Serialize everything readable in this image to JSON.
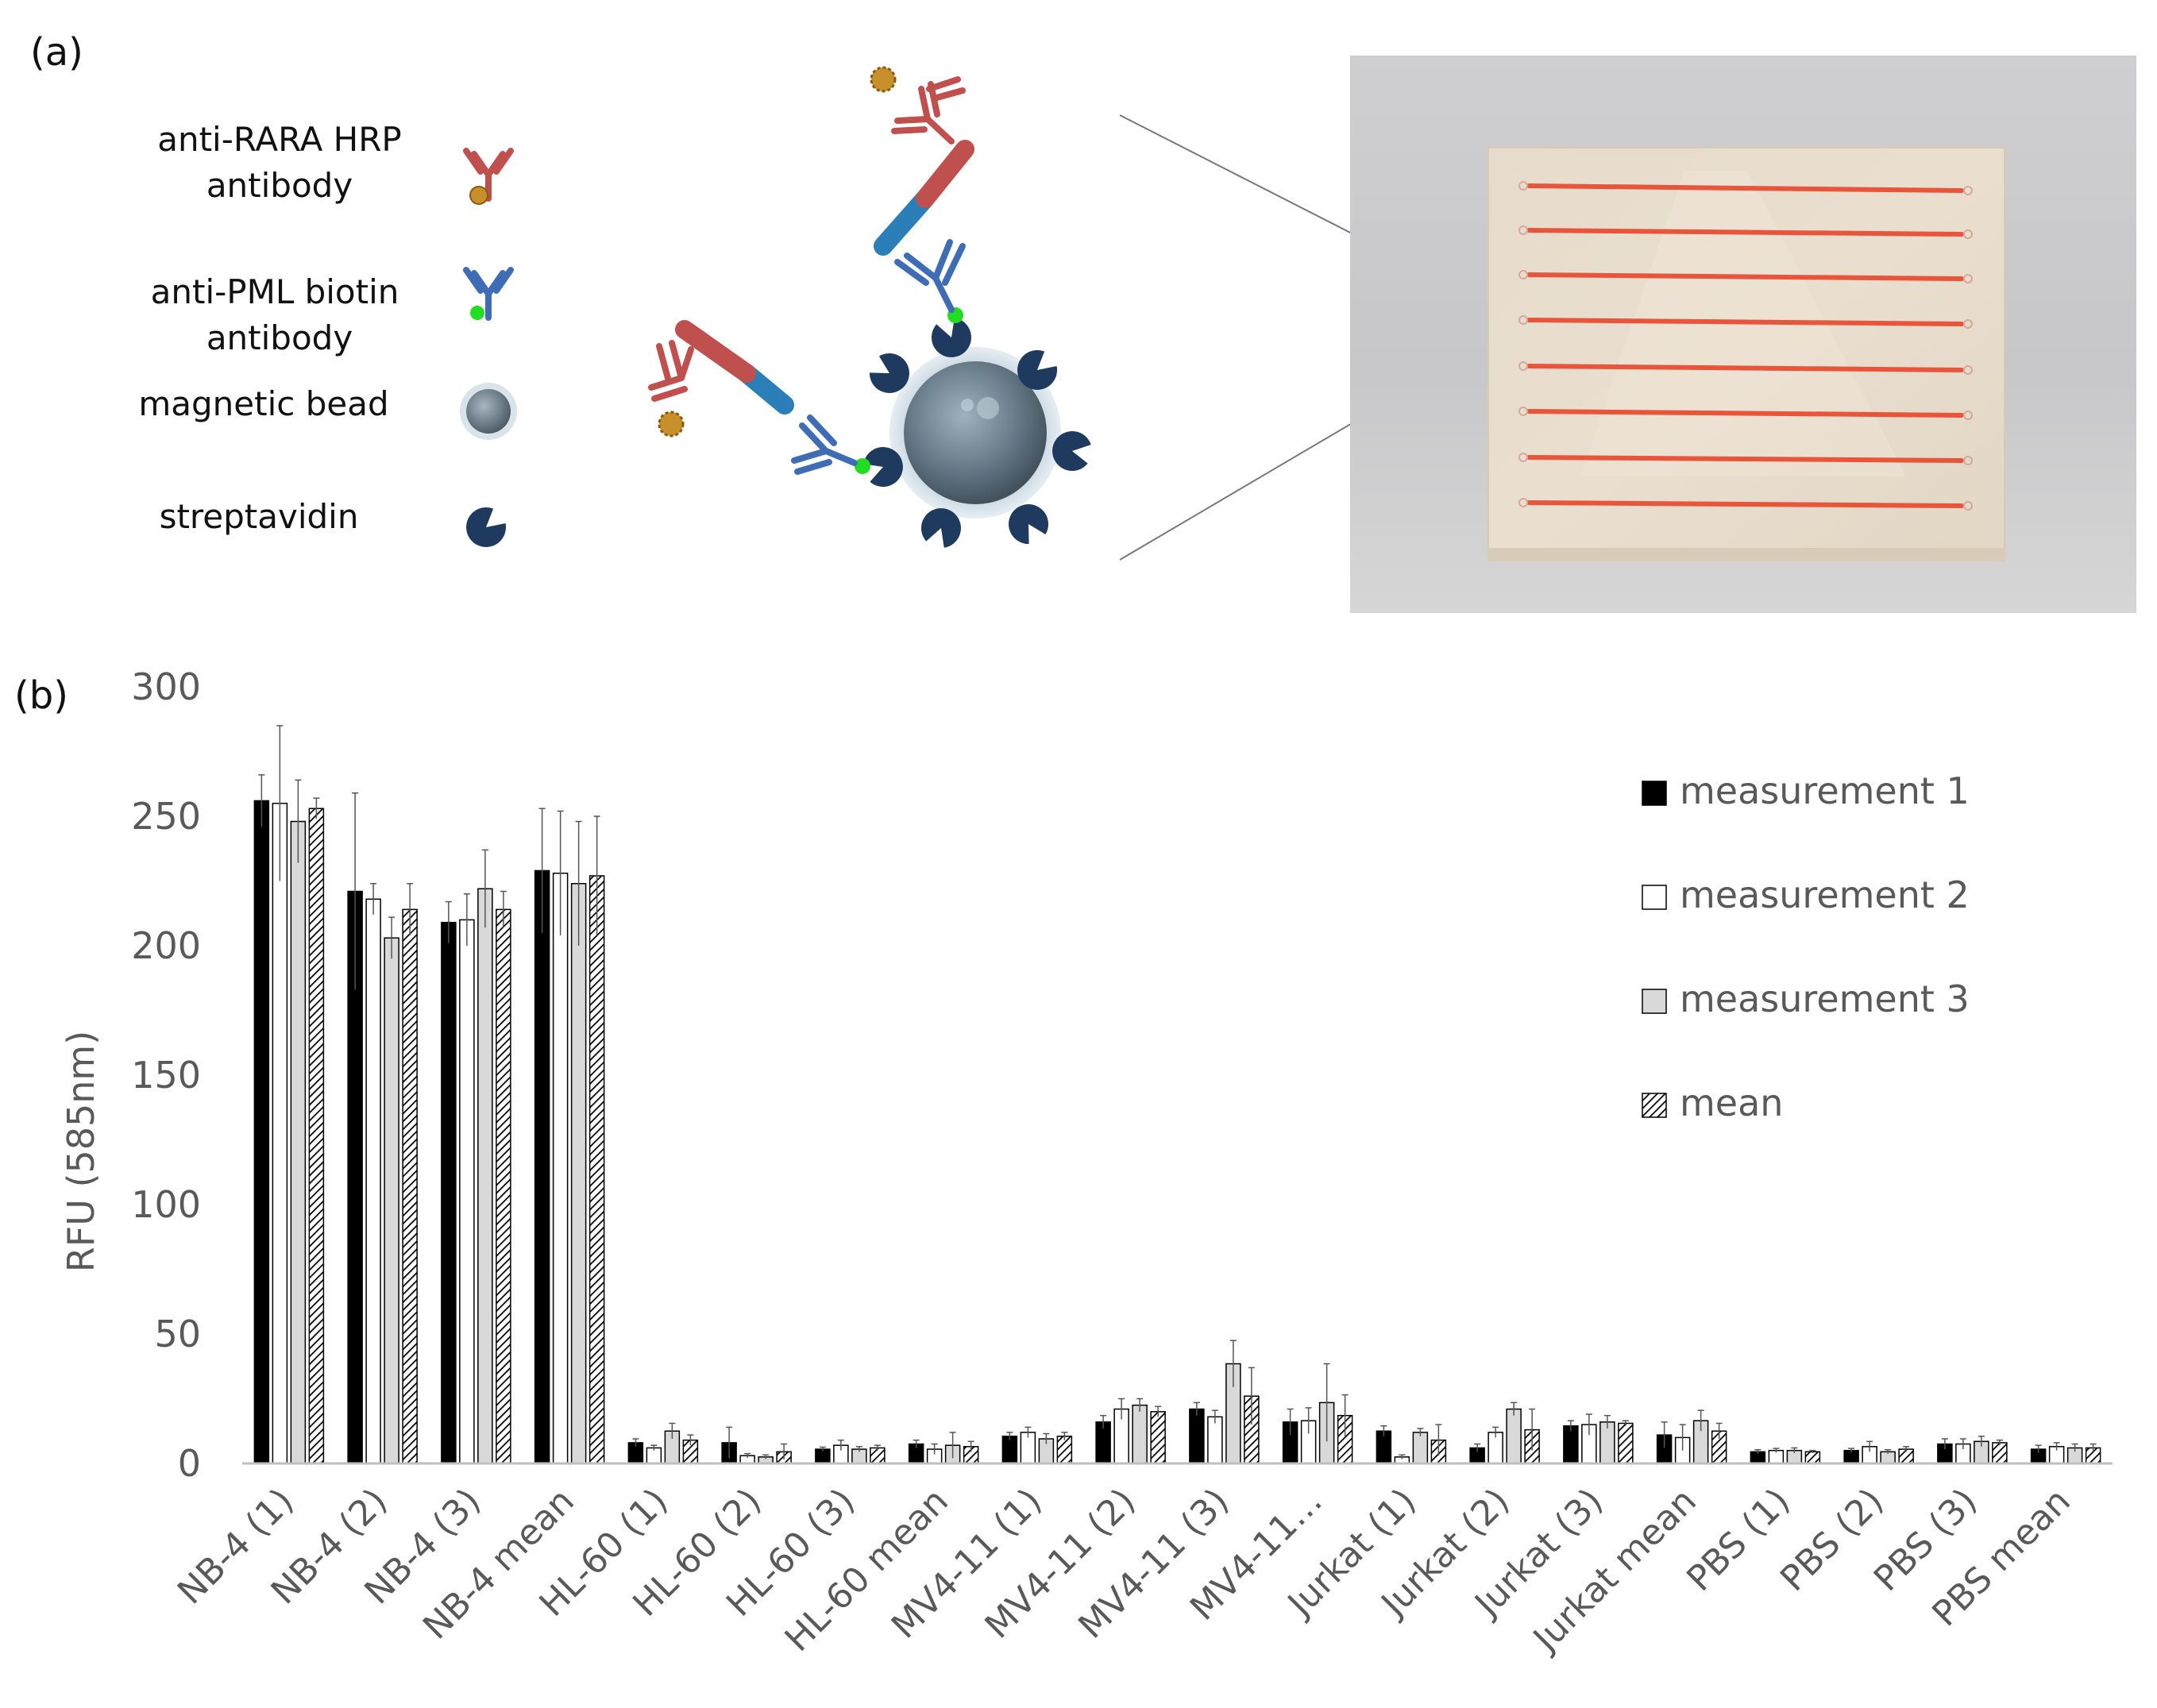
{
  "panel_a": {
    "label": "(a)",
    "legend": [
      {
        "line1": "anti-RARA HRP",
        "line2": "antibody",
        "icon": "red-antibody-hrp-icon"
      },
      {
        "line1": "anti-PML biotin",
        "line2": "antibody",
        "icon": "blue-antibody-biotin-icon"
      },
      {
        "line1": "magnetic bead",
        "line2": "",
        "icon": "magnetic-bead-icon"
      },
      {
        "line1": "streptavidin",
        "line2": "",
        "icon": "streptavidin-icon"
      }
    ],
    "colors": {
      "red": "#c0504d",
      "blue": "#3e6db5",
      "navy": "#1f3a5f",
      "hrp": "#c8902a",
      "biotin": "#22dd22",
      "chip_line": "#e8553a"
    }
  },
  "panel_b": {
    "label": "(b)"
  },
  "chart_data": {
    "type": "bar",
    "ylabel": "RFU (585nm)",
    "xlabel": "",
    "ylim": [
      0,
      300
    ],
    "yticks": [
      0,
      50,
      100,
      150,
      200,
      250,
      300
    ],
    "grid": false,
    "legend_position": "right",
    "categories": [
      "NB-4 (1)",
      "NB-4 (2)",
      "NB-4 (3)",
      "NB-4 mean",
      "HL-60 (1)",
      "HL-60 (2)",
      "HL-60 (3)",
      "HL-60 mean",
      "MV4-11 (1)",
      "MV4-11 (2)",
      "MV4-11 (3)",
      "MV4-11…",
      "Jurkat (1)",
      "Jurkat (2)",
      "Jurkat (3)",
      "Jurkat mean",
      "PBS (1)",
      "PBS (2)",
      "PBS (3)",
      "PBS mean"
    ],
    "series": [
      {
        "name": "measurement 1",
        "fill": "#000000",
        "values": [
          256,
          221,
          209,
          229,
          8,
          8,
          5.5,
          7.5,
          10.5,
          16,
          21,
          16,
          12.5,
          6,
          14.5,
          11,
          4.5,
          5,
          7.5,
          5.5
        ],
        "errors": [
          10,
          38,
          8,
          24,
          1.5,
          6,
          0.8,
          1.5,
          1.5,
          2.5,
          2.5,
          5,
          2,
          1.5,
          2,
          5,
          0.8,
          0.8,
          2,
          1.5
        ]
      },
      {
        "name": "measurement 2",
        "fill": "#ffffff",
        "values": [
          255,
          218,
          210,
          228,
          6,
          3,
          7,
          5.5,
          12,
          21,
          18,
          16.5,
          2.5,
          12,
          15,
          10,
          5,
          6.5,
          7.5,
          6.5
        ],
        "errors": [
          30,
          6,
          10,
          24,
          1,
          0.8,
          2,
          2,
          2,
          4,
          2.5,
          5,
          0.8,
          2,
          4,
          5,
          0.8,
          2,
          2,
          1.5
        ]
      },
      {
        "name": "measurement 3",
        "fill": "#d9d9d9",
        "values": [
          248,
          203,
          222,
          224,
          12.5,
          2.5,
          5.5,
          7,
          9.5,
          22.5,
          38.5,
          23.5,
          12,
          21,
          16,
          16.5,
          5,
          4.5,
          8.5,
          6
        ],
        "errors": [
          16,
          8,
          15,
          24,
          3,
          0.8,
          1,
          5,
          2,
          2.5,
          9,
          15,
          1.5,
          2.5,
          2.5,
          4,
          1,
          0.8,
          2,
          1.5
        ]
      },
      {
        "name": "mean",
        "fill": "hatch",
        "values": [
          253,
          214,
          214,
          227,
          9,
          4.5,
          6,
          6.5,
          10.5,
          20,
          26,
          18.5,
          9,
          13,
          15.5,
          12.5,
          4.5,
          5.5,
          8,
          6
        ],
        "errors": [
          4,
          10,
          7,
          23,
          2,
          3,
          1,
          2,
          1.5,
          2,
          11,
          8,
          6,
          8,
          1,
          3,
          0.5,
          1,
          1,
          1.5
        ]
      }
    ]
  }
}
